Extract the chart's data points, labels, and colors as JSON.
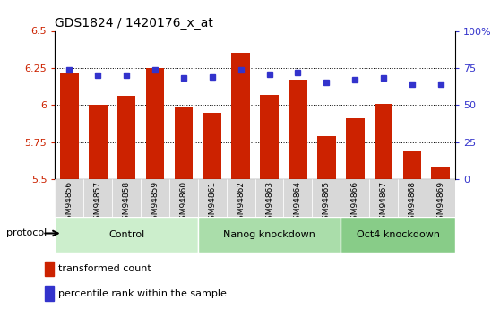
{
  "title": "GDS1824 / 1420176_x_at",
  "samples": [
    "GSM94856",
    "GSM94857",
    "GSM94858",
    "GSM94859",
    "GSM94860",
    "GSM94861",
    "GSM94862",
    "GSM94863",
    "GSM94864",
    "GSM94865",
    "GSM94866",
    "GSM94867",
    "GSM94868",
    "GSM94869"
  ],
  "bar_values": [
    6.22,
    6.0,
    6.06,
    6.25,
    5.99,
    5.95,
    6.35,
    6.07,
    6.17,
    5.79,
    5.91,
    6.01,
    5.69,
    5.58
  ],
  "dot_values": [
    74,
    70,
    70,
    74,
    68,
    69,
    74,
    71,
    72,
    65,
    67,
    68,
    64,
    64
  ],
  "bar_color": "#cc2200",
  "dot_color": "#3333cc",
  "ylim_left": [
    5.5,
    6.5
  ],
  "ylim_right": [
    0,
    100
  ],
  "yticks_left": [
    5.5,
    5.75,
    6.0,
    6.25,
    6.5
  ],
  "ytick_labels_left": [
    "5.5",
    "5.75",
    "6",
    "6.25",
    "6.5"
  ],
  "yticks_right": [
    0,
    25,
    50,
    75,
    100
  ],
  "ytick_labels_right": [
    "0",
    "25",
    "50",
    "75",
    "100%"
  ],
  "groups": [
    {
      "label": "Control",
      "start": 0,
      "end": 5,
      "color": "#cceecc"
    },
    {
      "label": "Nanog knockdown",
      "start": 5,
      "end": 10,
      "color": "#aaddaa"
    },
    {
      "label": "Oct4 knockdown",
      "start": 10,
      "end": 14,
      "color": "#88cc88"
    }
  ],
  "protocol_label": "protocol",
  "legend_bar_label": "transformed count",
  "legend_dot_label": "percentile rank within the sample",
  "grid_dotted_color": "black",
  "xtick_bg": "#d8d8d8",
  "plot_bg": "white"
}
